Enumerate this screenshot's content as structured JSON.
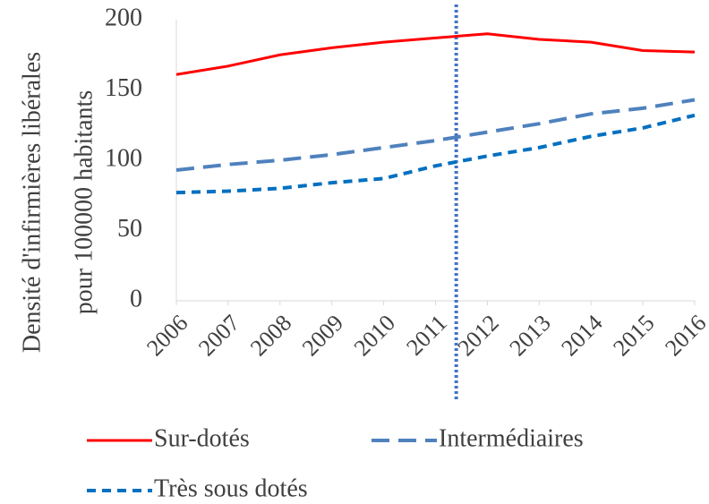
{
  "chart_data": {
    "type": "line",
    "ylabel": [
      "Densité d'infirmières libérales",
      "pour 100000 habitants"
    ],
    "x": [
      2006,
      2007,
      2008,
      2009,
      2010,
      2011,
      2012,
      2013,
      2014,
      2015,
      2016
    ],
    "xlim": [
      2006,
      2016
    ],
    "xticks": [
      2006,
      2007,
      2008,
      2009,
      2010,
      2011,
      2012,
      2013,
      2014,
      2015,
      2016
    ],
    "ylim": [
      0,
      200
    ],
    "yticks": [
      0,
      50,
      100,
      150,
      200
    ],
    "grid": false,
    "legend": "bottom",
    "vline": {
      "x": 2011.4,
      "color": "#4472c4",
      "style": "dotted"
    },
    "series": [
      {
        "name": "Sur-dotés",
        "color": "#ff0000",
        "style": "solid",
        "values": [
          161,
          167,
          175,
          180,
          184,
          187,
          190,
          186,
          184,
          178,
          177
        ]
      },
      {
        "name": "Intermédiaires",
        "color": "#4f81bd",
        "style": "dash",
        "values": [
          93,
          97,
          100,
          104,
          109,
          114,
          120,
          126,
          133,
          137,
          143
        ]
      },
      {
        "name": "Très sous dotés",
        "color": "#0070c0",
        "style": "short-dash",
        "values": [
          77,
          78,
          80,
          84,
          87,
          96,
          103,
          109,
          117,
          123,
          132
        ]
      }
    ]
  }
}
